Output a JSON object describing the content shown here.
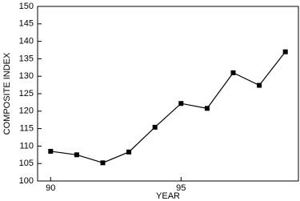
{
  "chart_data": {
    "type": "line",
    "xlabel": "YEAR",
    "ylabel": "COMPOSITE INDEX",
    "x": [
      90,
      91,
      92,
      93,
      94,
      95,
      96,
      97,
      98,
      99
    ],
    "series": [
      {
        "values": [
          108.5,
          107.5,
          105.2,
          108.3,
          115.4,
          122.2,
          120.8,
          131.0,
          127.4,
          137.0
        ],
        "color": "#000000"
      }
    ],
    "xlim": [
      89.5,
      99.5
    ],
    "xticks": [
      90,
      95
    ],
    "ylim": [
      100,
      150
    ],
    "yticks": [
      100,
      105,
      110,
      115,
      120,
      125,
      130,
      135,
      140,
      145,
      150
    ],
    "grid": false
  }
}
